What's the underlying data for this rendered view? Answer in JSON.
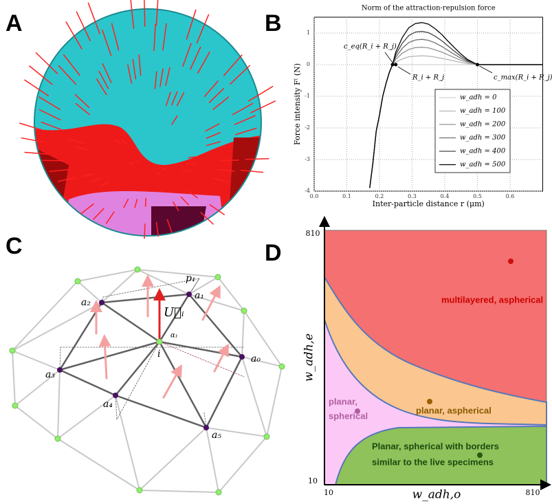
{
  "panels": {
    "a": "A",
    "b": "B",
    "c": "C",
    "d": "D"
  },
  "chart_data": {
    "type": "line",
    "title": "Norm of the attraction-repulsion force",
    "x_label": "Inter-particle distance r (μm)",
    "y_label": "Force intensity Fˡ (N)",
    "x": [
      0.17,
      0.18,
      0.19,
      0.2,
      0.21,
      0.22,
      0.23,
      0.24,
      0.25,
      0.27,
      0.29,
      0.31,
      0.33,
      0.35,
      0.37,
      0.39,
      0.41,
      0.43,
      0.45,
      0.47,
      0.5,
      0.6,
      0.7
    ],
    "series": [
      {
        "name": "w_adh = 0",
        "color": "#d4d4d4",
        "values": [
          -3.9,
          -3.1,
          -2.1,
          -1.6,
          -1.0,
          -0.6,
          -0.25,
          0,
          0,
          0,
          0,
          0,
          0,
          0,
          0,
          0,
          0,
          0,
          0,
          0,
          0,
          0,
          0
        ]
      },
      {
        "name": "w_adh = 100",
        "color": "#b4b4b4",
        "values": [
          -3.9,
          -3.1,
          -2.1,
          -1.6,
          -1.0,
          -0.6,
          -0.25,
          0,
          0.08,
          0.18,
          0.25,
          0.27,
          0.28,
          0.27,
          0.24,
          0.2,
          0.16,
          0.11,
          0.07,
          0.03,
          0,
          0,
          0
        ]
      },
      {
        "name": "w_adh = 200",
        "color": "#949494",
        "values": [
          -3.9,
          -3.1,
          -2.1,
          -1.6,
          -1.0,
          -0.6,
          -0.25,
          0,
          0.17,
          0.36,
          0.48,
          0.54,
          0.55,
          0.53,
          0.47,
          0.4,
          0.31,
          0.22,
          0.14,
          0.07,
          0,
          0,
          0
        ]
      },
      {
        "name": "w_adh = 300",
        "color": "#707070",
        "values": [
          -3.9,
          -3.1,
          -2.1,
          -1.6,
          -1.0,
          -0.6,
          -0.25,
          0,
          0.24,
          0.52,
          0.7,
          0.78,
          0.8,
          0.77,
          0.69,
          0.58,
          0.45,
          0.32,
          0.2,
          0.1,
          0,
          0,
          0
        ]
      },
      {
        "name": "w_adh = 400",
        "color": "#444444",
        "values": [
          -3.9,
          -3.1,
          -2.1,
          -1.6,
          -1.0,
          -0.6,
          -0.25,
          0,
          0.32,
          0.68,
          0.92,
          1.03,
          1.05,
          1.01,
          0.9,
          0.76,
          0.59,
          0.42,
          0.26,
          0.13,
          0,
          0,
          0
        ]
      },
      {
        "name": "w_adh = 500",
        "color": "#000000",
        "values": [
          -3.9,
          -3.1,
          -2.1,
          -1.6,
          -1.0,
          -0.6,
          -0.25,
          0,
          0.4,
          0.86,
          1.17,
          1.3,
          1.33,
          1.28,
          1.14,
          0.96,
          0.74,
          0.53,
          0.33,
          0.16,
          0,
          0,
          0
        ]
      }
    ],
    "xlim": [
      0,
      0.7
    ],
    "ylim": [
      -4,
      1.5
    ],
    "xticks": [
      {
        "value": 0,
        "label": "0.0"
      },
      0.1,
      0.2,
      0.3,
      0.4,
      0.5,
      0.6
    ],
    "yticks": [
      -4,
      -3,
      -2,
      -1,
      0,
      1
    ],
    "grid": true,
    "legend": "center right",
    "annotations": [
      "c_eq(R_i + R_j)",
      "R_i + R_j",
      "c_max(R_i + R_j)"
    ]
  },
  "diagram_c": {
    "labels": {
      "a0": "a₀",
      "a1": "a₁",
      "a2": "a₂",
      "a3": "a₃",
      "a4": "a₄",
      "a5": "a₅",
      "i": "i",
      "p1": "p₁",
      "alpha1": "α₁",
      "u": "U⃗ᵢ"
    }
  },
  "phase_d": {
    "x_label": "w_adh,o",
    "y_label": "w_adh,e",
    "x_ticks": [
      "10",
      "810"
    ],
    "y_ticks": [
      "810",
      "10"
    ],
    "regions": [
      "multilayered, aspherical",
      "planar, aspherical",
      "planar,",
      "spherical",
      "Planar, spherical with  borders",
      "similar to the live specimens"
    ]
  }
}
